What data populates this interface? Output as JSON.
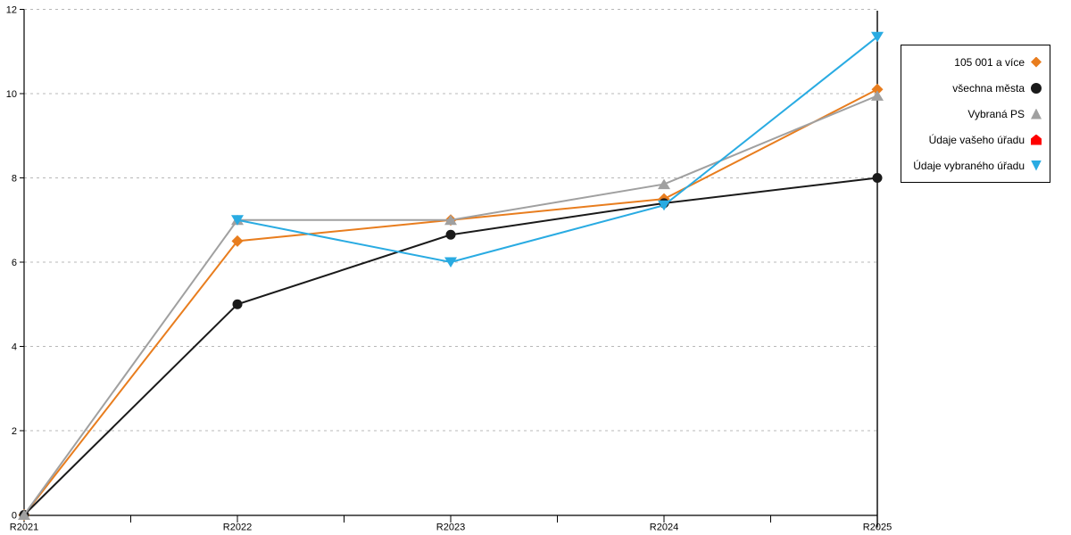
{
  "chart_data": {
    "type": "line",
    "title": "",
    "xlabel": "",
    "ylabel": "",
    "categories": [
      "R2021",
      "R2022",
      "R2023",
      "R2024",
      "R2025"
    ],
    "ylim": [
      0,
      12
    ],
    "yticks": [
      0,
      2,
      4,
      6,
      8,
      10,
      12
    ],
    "grid": "dotted horizontal gridlines at each y tick",
    "legend_position": "right, boxed, text right-aligned with marker at right",
    "series": [
      {
        "name": "105 001 a více",
        "marker": "diamond",
        "color": "#E87D1E",
        "values": [
          0,
          6.5,
          7,
          7.5,
          10.1
        ]
      },
      {
        "name": "všechna města",
        "marker": "circle",
        "color": "#1A1A1A",
        "values": [
          0,
          5,
          6.65,
          7.4,
          8
        ]
      },
      {
        "name": "Vybraná PS",
        "marker": "triangle-up",
        "color": "#A0A0A0",
        "values": [
          0,
          7,
          7,
          7.85,
          9.95
        ]
      },
      {
        "name": "Údaje vašeho úřadu",
        "marker": "pentagon",
        "color": "#FF0000",
        "values": [
          null,
          null,
          null,
          null,
          null
        ]
      },
      {
        "name": "Údaje vybraného úřadu",
        "marker": "triangle-down",
        "color": "#29ABE2",
        "values": [
          null,
          7,
          6,
          7.35,
          11.35
        ]
      }
    ]
  }
}
